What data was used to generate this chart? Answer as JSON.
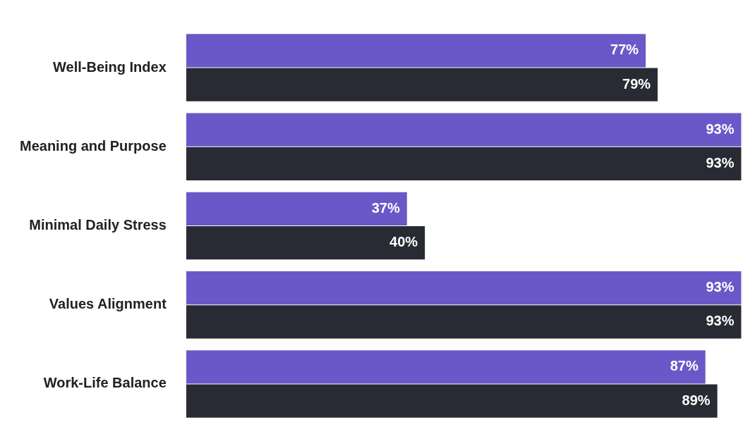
{
  "chart_data": {
    "type": "bar",
    "orientation": "horizontal",
    "categories": [
      "Well-Being Index",
      "Meaning and Purpose",
      "Minimal Daily Stress",
      "Values Alignment",
      "Work-Life Balance"
    ],
    "xlim": [
      0,
      93.3
    ],
    "series": [
      {
        "color": "#6b58c8",
        "values": [
          77,
          93,
          37,
          93,
          87
        ],
        "value_labels": [
          "77%",
          "93%",
          "37%",
          "93%",
          "87%"
        ]
      },
      {
        "color": "#282b33",
        "values": [
          79,
          93,
          40,
          93,
          89
        ],
        "value_labels": [
          "79%",
          "93%",
          "40%",
          "93%",
          "89%"
        ]
      }
    ],
    "legend": false
  }
}
